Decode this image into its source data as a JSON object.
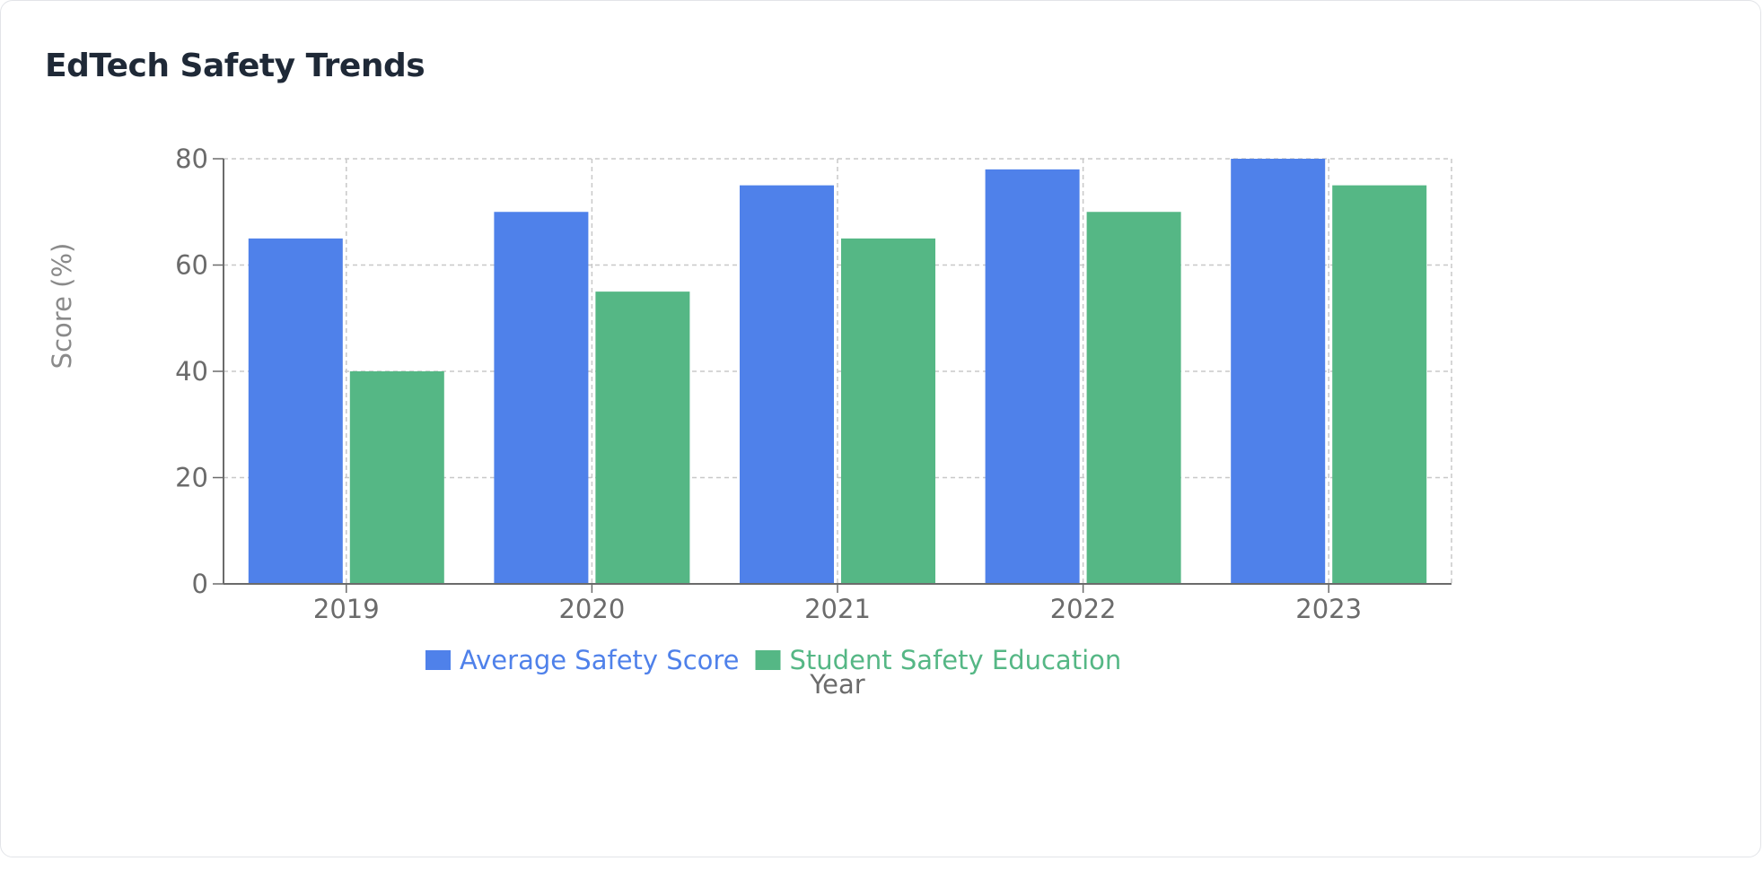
{
  "card": {
    "title": "EdTech Safety Trends"
  },
  "chart_data": {
    "type": "bar",
    "title": "EdTech Safety Trends",
    "categories": [
      "2019",
      "2020",
      "2021",
      "2022",
      "2023"
    ],
    "series": [
      {
        "name": "Average Safety Score",
        "color": "#4f81ea",
        "values": [
          65,
          70,
          75,
          78,
          80
        ]
      },
      {
        "name": "Student Safety Education",
        "color": "#55b785",
        "values": [
          40,
          55,
          65,
          70,
          75
        ]
      }
    ],
    "xlabel": "Year",
    "ylabel": "Score (%)",
    "ylim": [
      0,
      80
    ],
    "yticks": [
      0,
      20,
      40,
      60,
      80
    ],
    "grid": true,
    "legend_position": "bottom"
  }
}
